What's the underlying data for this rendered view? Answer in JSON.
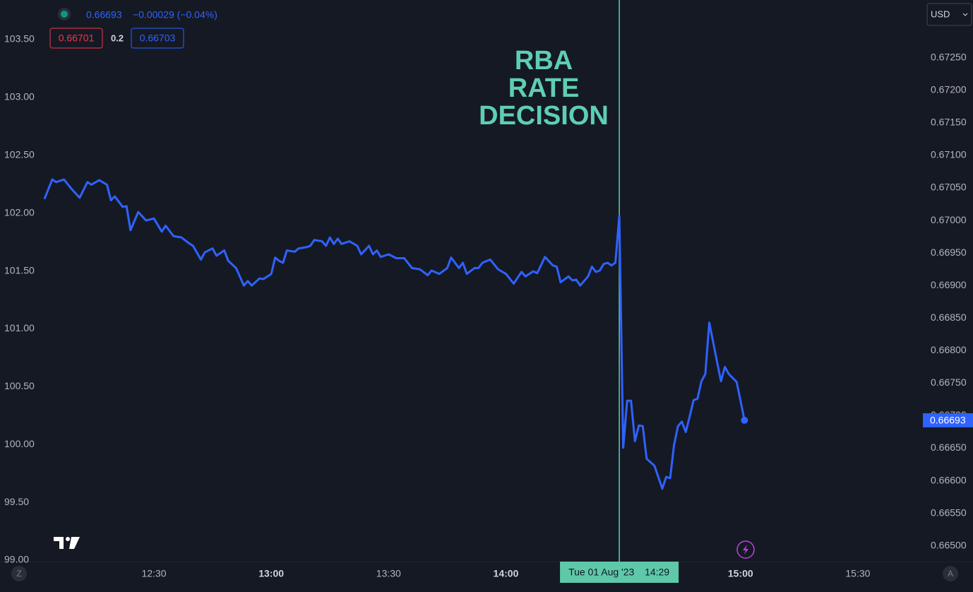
{
  "chart_data": {
    "type": "line",
    "price": 0.66693,
    "change": "−0.00029 (−0.04%)",
    "bid": 0.66701,
    "spread": 0.2,
    "ask": 0.66703,
    "currency": "USD",
    "left_button": "Z",
    "right_button": "A",
    "annotation": [
      "RBA",
      "RATE",
      "DECISION"
    ],
    "crosshair": {
      "x": "14:29",
      "date": "Tue 01 Aug '23",
      "time": "14:29"
    },
    "grid": false,
    "xlim": [
      "11:51",
      "15:45"
    ],
    "xticks": [
      "12:30",
      "13:00",
      "13:30",
      "14:00",
      "15:00",
      "15:30"
    ],
    "ylim": [
      99,
      103.5
    ],
    "yticks": [
      {
        "value": 99,
        "label": "99.00"
      },
      {
        "value": 99.5,
        "label": "99.50"
      },
      {
        "value": 100,
        "label": "100.00"
      },
      {
        "value": 100.5,
        "label": "100.50"
      },
      {
        "value": 101,
        "label": "101.00"
      },
      {
        "value": 101.5,
        "label": "101.50"
      },
      {
        "value": 102,
        "label": "102.00"
      },
      {
        "value": 102.5,
        "label": "102.50"
      },
      {
        "value": 103,
        "label": "103.00"
      },
      {
        "value": 103.5,
        "label": "103.50"
      }
    ],
    "y2lim": [
      0.66478,
      0.67278
    ],
    "y2ticks": [
      {
        "value": 0.665,
        "label": "0.66500"
      },
      {
        "value": 0.6655,
        "label": "0.66550"
      },
      {
        "value": 0.666,
        "label": "0.66600"
      },
      {
        "value": 0.6665,
        "label": "0.66650"
      },
      {
        "value": 0.667,
        "label": "0.66700"
      },
      {
        "value": 0.6675,
        "label": "0.66750"
      },
      {
        "value": 0.668,
        "label": "0.66800"
      },
      {
        "value": 0.6685,
        "label": "0.66850"
      },
      {
        "value": 0.669,
        "label": "0.66900"
      },
      {
        "value": 0.6695,
        "label": "0.66950"
      },
      {
        "value": 0.67,
        "label": "0.67000"
      },
      {
        "value": 0.6705,
        "label": "0.67050"
      },
      {
        "value": 0.671,
        "label": "0.67100"
      },
      {
        "value": 0.6715,
        "label": "0.67150"
      },
      {
        "value": 0.672,
        "label": "0.67200"
      },
      {
        "value": 0.6725,
        "label": "0.67250"
      }
    ],
    "x": [
      "12:02",
      "12:04",
      "12:05",
      "12:07",
      "12:09",
      "12:11",
      "12:13",
      "12:14",
      "12:16",
      "12:18",
      "12:19",
      "12:20",
      "12:22",
      "12:23",
      "12:24",
      "12:26",
      "12:28",
      "12:30",
      "12:32",
      "12:33",
      "12:35",
      "12:37",
      "12:39",
      "12:40",
      "12:42",
      "12:43",
      "12:45",
      "12:46",
      "12:48",
      "12:49",
      "12:51",
      "12:53",
      "12:54",
      "12:55",
      "12:57",
      "12:58",
      "13:00",
      "13:01",
      "13:02",
      "13:03",
      "13:04",
      "13:06",
      "13:07",
      "13:09",
      "13:10",
      "13:11",
      "13:13",
      "13:14",
      "13:15",
      "13:16",
      "13:17",
      "13:18",
      "13:20",
      "13:22",
      "13:23",
      "13:25",
      "13:26",
      "13:27",
      "13:28",
      "13:30",
      "13:32",
      "13:34",
      "13:36",
      "13:38",
      "13:40",
      "13:41",
      "13:43",
      "13:45",
      "13:46",
      "13:48",
      "13:49",
      "13:50",
      "13:52",
      "13:53",
      "13:54",
      "13:56",
      "13:58",
      "14:00",
      "14:02",
      "14:04",
      "14:05",
      "14:07",
      "14:08",
      "14:10",
      "14:12",
      "14:13",
      "14:14",
      "14:16",
      "14:17",
      "14:18",
      "14:19",
      "14:21",
      "14:22",
      "14:23",
      "14:24",
      "14:25",
      "14:26",
      "14:27",
      "14:28",
      "14:29",
      "14:30",
      "14:31",
      "14:32",
      "14:33",
      "14:34",
      "14:35",
      "14:36",
      "14:38",
      "14:40",
      "14:41",
      "14:42",
      "14:43",
      "14:44",
      "14:45",
      "14:46",
      "14:47",
      "14:48",
      "14:49",
      "14:50",
      "14:51",
      "14:52",
      "14:54",
      "14:55",
      "14:56",
      "14:57",
      "14:59",
      "15:00",
      "15:01"
    ],
    "series": [
      {
        "color": "#2f62ff",
        "axis": "y2",
        "values": [
          0.67033,
          0.67063,
          0.67059,
          0.67063,
          0.67048,
          0.67035,
          0.67059,
          0.67055,
          0.67062,
          0.67055,
          0.67031,
          0.67037,
          0.67021,
          0.67022,
          0.66985,
          0.67013,
          0.67,
          0.67003,
          0.66983,
          0.66992,
          0.66976,
          0.66974,
          0.66965,
          0.66961,
          0.6694,
          0.66951,
          0.66957,
          0.66946,
          0.66954,
          0.66938,
          0.66927,
          0.669,
          0.66907,
          0.669,
          0.66911,
          0.6691,
          0.66918,
          0.66943,
          0.66938,
          0.66935,
          0.66954,
          0.66952,
          0.66957,
          0.66959,
          0.66961,
          0.6697,
          0.66968,
          0.66961,
          0.66974,
          0.66964,
          0.66972,
          0.66964,
          0.66968,
          0.66961,
          0.66948,
          0.66961,
          0.66948,
          0.66954,
          0.66944,
          0.66948,
          0.66942,
          0.66942,
          0.66927,
          0.66925,
          0.66916,
          0.66923,
          0.66918,
          0.66927,
          0.66943,
          0.66927,
          0.66935,
          0.66918,
          0.66927,
          0.66927,
          0.66935,
          0.6694,
          0.66925,
          0.66918,
          0.66903,
          0.66921,
          0.66914,
          0.66922,
          0.66919,
          0.66944,
          0.66931,
          0.66929,
          0.66905,
          0.66914,
          0.66908,
          0.66909,
          0.669,
          0.66914,
          0.66929,
          0.66921,
          0.66923,
          0.66933,
          0.66935,
          0.66931,
          0.66935,
          0.67007,
          0.66651,
          0.66723,
          0.66723,
          0.66661,
          0.66685,
          0.66684,
          0.66634,
          0.66623,
          0.66588,
          0.66606,
          0.66604,
          0.66655,
          0.66684,
          0.66691,
          0.66675,
          0.66699,
          0.66724,
          0.66726,
          0.66753,
          0.66764,
          0.66843,
          0.66783,
          0.66753,
          0.66775,
          0.66764,
          0.66752,
          0.66723,
          0.66693
        ]
      }
    ]
  }
}
